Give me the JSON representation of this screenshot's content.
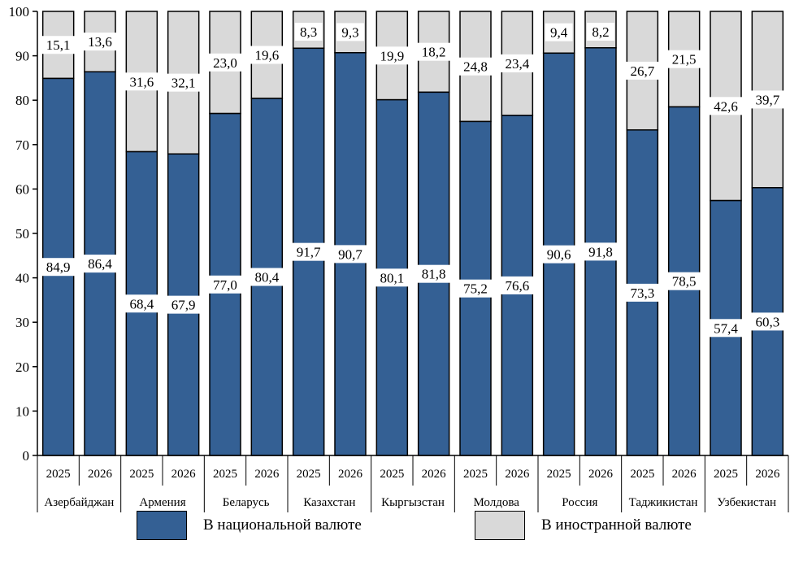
{
  "chart_data": {
    "type": "bar",
    "stacked": true,
    "ylim": [
      0,
      100
    ],
    "yticks": [
      0,
      10,
      20,
      30,
      40,
      50,
      60,
      70,
      80,
      90,
      100
    ],
    "grid": false,
    "legend_position": "bottom",
    "groups": [
      {
        "name": "Азербайджан",
        "years": [
          "2025",
          "2026"
        ],
        "national": [
          84.9,
          86.4
        ],
        "foreign": [
          15.1,
          13.6
        ],
        "national_labels": [
          "84,9",
          "86,4"
        ],
        "foreign_labels": [
          "15,1",
          "13,6"
        ]
      },
      {
        "name": "Армения",
        "years": [
          "2025",
          "2026"
        ],
        "national": [
          68.4,
          67.9
        ],
        "foreign": [
          31.6,
          32.1
        ],
        "national_labels": [
          "68,4",
          "67,9"
        ],
        "foreign_labels": [
          "31,6",
          "32,1"
        ]
      },
      {
        "name": "Беларусь",
        "years": [
          "2025",
          "2026"
        ],
        "national": [
          77.0,
          80.4
        ],
        "foreign": [
          23.0,
          19.6
        ],
        "national_labels": [
          "77,0",
          "80,4"
        ],
        "foreign_labels": [
          "23,0",
          "19,6"
        ]
      },
      {
        "name": "Казахстан",
        "years": [
          "2025",
          "2026"
        ],
        "national": [
          91.7,
          90.7
        ],
        "foreign": [
          8.3,
          9.3
        ],
        "national_labels": [
          "91,7",
          "90,7"
        ],
        "foreign_labels": [
          "8,3",
          "9,3"
        ]
      },
      {
        "name": "Кыргызстан",
        "years": [
          "2025",
          "2026"
        ],
        "national": [
          80.1,
          81.8
        ],
        "foreign": [
          19.9,
          18.2
        ],
        "national_labels": [
          "80,1",
          "81,8"
        ],
        "foreign_labels": [
          "19,9",
          "18,2"
        ]
      },
      {
        "name": "Молдова",
        "years": [
          "2025",
          "2026"
        ],
        "national": [
          75.2,
          76.6
        ],
        "foreign": [
          24.8,
          23.4
        ],
        "national_labels": [
          "75,2",
          "76,6"
        ],
        "foreign_labels": [
          "24,8",
          "23,4"
        ]
      },
      {
        "name": "Россия",
        "years": [
          "2025",
          "2026"
        ],
        "national": [
          90.6,
          91.8
        ],
        "foreign": [
          9.4,
          8.2
        ],
        "national_labels": [
          "90,6",
          "91,8"
        ],
        "foreign_labels": [
          "9,4",
          "8,2"
        ]
      },
      {
        "name": "Таджикистан",
        "years": [
          "2025",
          "2026"
        ],
        "national": [
          73.3,
          78.5
        ],
        "foreign": [
          26.7,
          21.5
        ],
        "national_labels": [
          "73,3",
          "78,5"
        ],
        "foreign_labels": [
          "26,7",
          "21,5"
        ]
      },
      {
        "name": "Узбекистан",
        "years": [
          "2025",
          "2026"
        ],
        "national": [
          57.4,
          60.3
        ],
        "foreign": [
          42.6,
          39.7
        ],
        "national_labels": [
          "57,4",
          "60,3"
        ],
        "foreign_labels": [
          "42,6",
          "39,7"
        ]
      }
    ],
    "series": [
      {
        "key": "national",
        "name": "В национальной валюте",
        "color": "#346094"
      },
      {
        "key": "foreign",
        "name": "В иностранной валюте",
        "color": "#d9d9d9"
      }
    ]
  }
}
